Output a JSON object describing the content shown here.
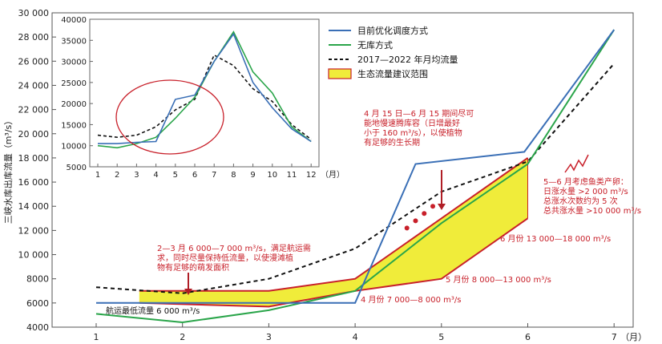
{
  "chart_data": [
    {
      "type": "line",
      "ylabel": "三峡水库出库流量（m³/s）",
      "x": [
        1,
        2,
        3,
        4,
        5,
        6,
        7
      ],
      "x_tick_labels": [
        "1",
        "2",
        "3",
        "4",
        "5",
        "6",
        "7"
      ],
      "x_unit": "（月）",
      "ylim": [
        4000,
        30000
      ],
      "y_ticks": [
        4000,
        6000,
        8000,
        10000,
        12000,
        14000,
        16000,
        18000,
        20000,
        22000,
        24000,
        26000,
        28000,
        30000
      ],
      "y_tick_labels": [
        "4000",
        "6000",
        "8000",
        "10 000",
        "12 000",
        "14 000",
        "16 000",
        "18 000",
        "20 000",
        "22 000",
        "24 000",
        "26 000",
        "28 000",
        "30 000"
      ],
      "series": [
        {
          "name": "目前优化调度方式",
          "color": "#3a6fb6",
          "style": "solid",
          "points": [
            [
              1,
              6000
            ],
            [
              2,
              6000
            ],
            [
              3,
              6000
            ],
            [
              4,
              6000
            ],
            [
              4.7,
              17500
            ],
            [
              5.96,
              18500
            ],
            [
              7.0,
              28600
            ]
          ]
        },
        {
          "name": "无库方式",
          "color": "#2aa54a",
          "style": "solid",
          "points": [
            [
              1,
              5100
            ],
            [
              2,
              4400
            ],
            [
              3,
              5400
            ],
            [
              4,
              7000
            ],
            [
              5,
              12600
            ],
            [
              6,
              17500
            ],
            [
              7.0,
              28600
            ]
          ]
        },
        {
          "name": "2017—2022 年月均流量",
          "color": "#111111",
          "style": "dashed",
          "points": [
            [
              1,
              7300
            ],
            [
              2,
              6800
            ],
            [
              3,
              8000
            ],
            [
              4,
              10500
            ],
            [
              5,
              15200
            ],
            [
              6,
              17700
            ],
            [
              7.0,
              25800
            ]
          ]
        }
      ],
      "band": {
        "name": "生态流量建议范围",
        "fill": "#f0ec3a",
        "border": "#c8202a",
        "upper": [
          [
            1.5,
            7000
          ],
          [
            3,
            7000
          ],
          [
            4,
            8000
          ],
          [
            5,
            13000
          ],
          [
            6,
            18000
          ]
        ],
        "lower": [
          [
            1.5,
            6000
          ],
          [
            3,
            5700
          ],
          [
            4,
            7000
          ],
          [
            5,
            8000
          ],
          [
            6,
            13000
          ]
        ]
      },
      "spawn_dots": [
        [
          4.6,
          12200
        ],
        [
          4.7,
          12800
        ],
        [
          4.8,
          13400
        ],
        [
          4.9,
          14000
        ]
      ],
      "annotations": {
        "navigation": "航运最低流量 6 000 m³/s",
        "feb_mar": [
          "2—3 月 6 000—7 000 m³/s，满足航运需",
          "求，同时尽量保持低流量，以使漫滩植",
          "物有足够的萌发面积"
        ],
        "apr_jun": [
          "4 月 15 日—6 月 15 期间尽可",
          "能地慢速腾库容（日增最好",
          "小于 160 m³/s），以使植物",
          "有足够的生长期"
        ],
        "spawn": [
          "5—6 月考虑鱼类产卵：",
          "日涨水量 >2 000 m³/s",
          "总涨水次数约为 5 次",
          "总共涨水量 >10 000 m³/s"
        ],
        "apr": "4 月份 7 000—8 000 m³/s",
        "may": "5 月份 8 000—13 000 m³/s",
        "jun": "6 月份 13 000—18 000 m³/s"
      }
    },
    {
      "type": "line",
      "x": [
        1,
        2,
        3,
        4,
        5,
        6,
        7,
        8,
        9,
        10,
        11,
        12
      ],
      "x_tick_labels": [
        "1",
        "2",
        "3",
        "4",
        "5",
        "6",
        "7",
        "8",
        "9",
        "10",
        "11",
        "12"
      ],
      "x_unit": "（月）",
      "ylim": [
        5000,
        40000
      ],
      "y_ticks": [
        5000,
        10000,
        15000,
        20000,
        25000,
        30000,
        35000,
        40000
      ],
      "y_tick_labels": [
        "5000",
        "10000",
        "15000",
        "20000",
        "25000",
        "30000",
        "35000",
        "40000"
      ],
      "series": [
        {
          "name": "目前优化调度方式",
          "color": "#3a6fb6",
          "style": "solid",
          "values": [
            10500,
            10500,
            10800,
            11000,
            21000,
            22000,
            30000,
            36500,
            25000,
            19000,
            14000,
            11000
          ]
        },
        {
          "name": "无库方式",
          "color": "#2aa54a",
          "style": "solid",
          "values": [
            10000,
            9500,
            10500,
            12000,
            16500,
            21500,
            30000,
            37000,
            27500,
            22500,
            14500,
            11000
          ]
        },
        {
          "name": "2017—2022 年月均流量",
          "color": "#111111",
          "style": "dashed",
          "values": [
            12500,
            12000,
            12500,
            14500,
            18500,
            21000,
            31500,
            29000,
            23500,
            20500,
            15000,
            11500
          ]
        }
      ],
      "ellipse_note": "highlight"
    }
  ],
  "legend": {
    "items": [
      {
        "label": "目前优化调度方式",
        "kind": "line",
        "color": "#3a6fb6"
      },
      {
        "label": "无库方式",
        "kind": "line",
        "color": "#2aa54a"
      },
      {
        "label": "2017—2022 年月均流量",
        "kind": "dashed",
        "color": "#111111"
      },
      {
        "label": "生态流量建议范围",
        "kind": "box",
        "color": "#f0ec3a",
        "border": "#c8202a"
      }
    ]
  }
}
